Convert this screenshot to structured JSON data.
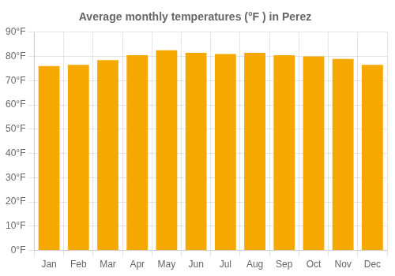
{
  "chart_data": {
    "type": "bar",
    "title": "Average monthly temperatures (°F ) in Perez",
    "categories": [
      "Jan",
      "Feb",
      "Mar",
      "Apr",
      "May",
      "Jun",
      "Jul",
      "Aug",
      "Sep",
      "Oct",
      "Nov",
      "Dec"
    ],
    "values": [
      76,
      76.5,
      78.5,
      80.5,
      82.5,
      81.5,
      81,
      81.5,
      80.5,
      80,
      79,
      76.5
    ],
    "color": "#F5A800",
    "ylim": [
      0,
      90
    ],
    "yticks": [
      {
        "value": 0,
        "label": "0°F"
      },
      {
        "value": 10,
        "label": "10°F"
      },
      {
        "value": 20,
        "label": "20°F"
      },
      {
        "value": 30,
        "label": "30°F"
      },
      {
        "value": 40,
        "label": "40°F"
      },
      {
        "value": 50,
        "label": "50°F"
      },
      {
        "value": 60,
        "label": "60°F"
      },
      {
        "value": 70,
        "label": "70°F"
      },
      {
        "value": 80,
        "label": "80°F"
      },
      {
        "value": 90,
        "label": "90°F"
      }
    ],
    "grid": true
  }
}
